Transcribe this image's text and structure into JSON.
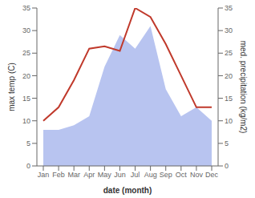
{
  "chart_data": {
    "type": "line",
    "xlabel": "date (month)",
    "ylabel": "max temp (C)",
    "y2label": "med. precipitation (kg/m2)",
    "categories": [
      "Jan",
      "Feb",
      "Mar",
      "Apr",
      "May",
      "Jun",
      "Jul",
      "Aug",
      "Sep",
      "Oct",
      "Nov",
      "Dec"
    ],
    "series": [
      {
        "type": "area",
        "color": "#b8c4f0",
        "values": [
          8,
          8,
          9,
          11,
          22,
          29,
          26,
          31,
          17,
          11,
          13,
          10
        ]
      },
      {
        "type": "line",
        "color": "#c0392b",
        "values": [
          10,
          13,
          19,
          26,
          26.5,
          25.5,
          35,
          33,
          27,
          20,
          13,
          13
        ]
      }
    ],
    "ylim": [
      0,
      35
    ],
    "yticks": [
      0,
      5,
      10,
      15,
      20,
      25,
      30,
      35
    ],
    "y2lim": [
      0,
      35
    ],
    "y2ticks": [
      0,
      5,
      10,
      15,
      20,
      25,
      30,
      35
    ],
    "grid": false
  }
}
